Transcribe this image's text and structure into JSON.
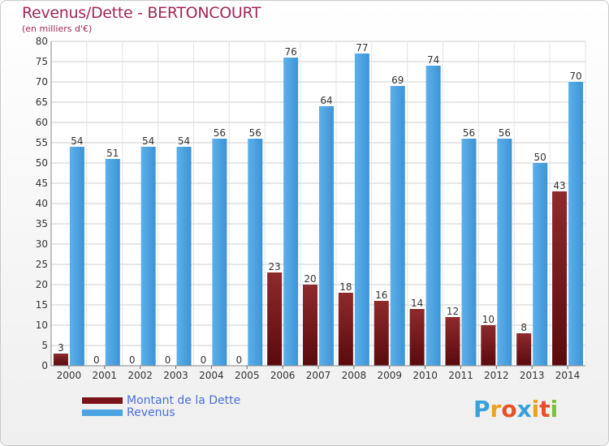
{
  "chart_data": {
    "type": "bar",
    "title": "Revenus/Dette - BERTONCOURT",
    "subtitle": "(en milliers d'€)",
    "categories": [
      "2000",
      "2001",
      "2002",
      "2003",
      "2004",
      "2005",
      "2006",
      "2007",
      "2008",
      "2009",
      "2010",
      "2011",
      "2012",
      "2013",
      "2014"
    ],
    "series": [
      {
        "name": "Montant de la Dette",
        "color": "#7a1418",
        "values": [
          3,
          0,
          0,
          0,
          0,
          0,
          23,
          20,
          18,
          16,
          14,
          12,
          10,
          8,
          43
        ]
      },
      {
        "name": "Revenus",
        "color": "#4aa3e2",
        "values": [
          54,
          51,
          54,
          54,
          56,
          56,
          76,
          64,
          77,
          69,
          74,
          56,
          56,
          50,
          70
        ]
      }
    ],
    "ylim": [
      0,
      80
    ],
    "yticks": [
      0,
      5,
      10,
      15,
      20,
      25,
      30,
      35,
      40,
      45,
      50,
      55,
      60,
      65,
      70,
      75,
      80
    ],
    "grid": true,
    "legend": "bottom-left"
  },
  "logo": {
    "text": "Proxiti",
    "letters": [
      "P",
      "r",
      "o",
      "x",
      "i",
      "t",
      "i"
    ],
    "colors": [
      "#3aa0dc",
      "#f0a020",
      "#e8502a",
      "#3aa0dc",
      "#f0a020",
      "#e8502a",
      "#7cc040"
    ]
  }
}
